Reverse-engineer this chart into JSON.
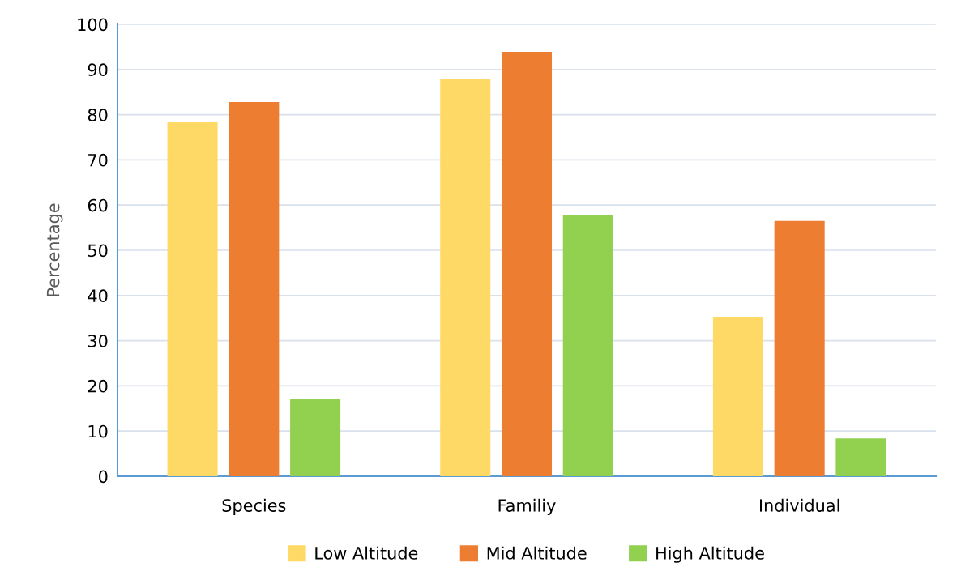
{
  "chart_data": {
    "type": "bar",
    "ylabel": "Percentage",
    "categories": [
      "Species",
      "Familiy",
      "Individual"
    ],
    "series": [
      {
        "name": "Low Altitude",
        "color": "#ffd966",
        "values": [
          78.3,
          87.8,
          35.3
        ]
      },
      {
        "name": "Mid Altitude",
        "color": "#ed7d31",
        "values": [
          82.8,
          93.9,
          56.5
        ]
      },
      {
        "name": "High Altitude",
        "color": "#92d050",
        "values": [
          17.2,
          57.7,
          8.4
        ]
      }
    ],
    "ylim": [
      0,
      100
    ],
    "yticks": [
      0,
      10,
      20,
      30,
      40,
      50,
      60,
      70,
      80,
      90,
      100
    ],
    "grid": "y",
    "legend": "bottom"
  }
}
